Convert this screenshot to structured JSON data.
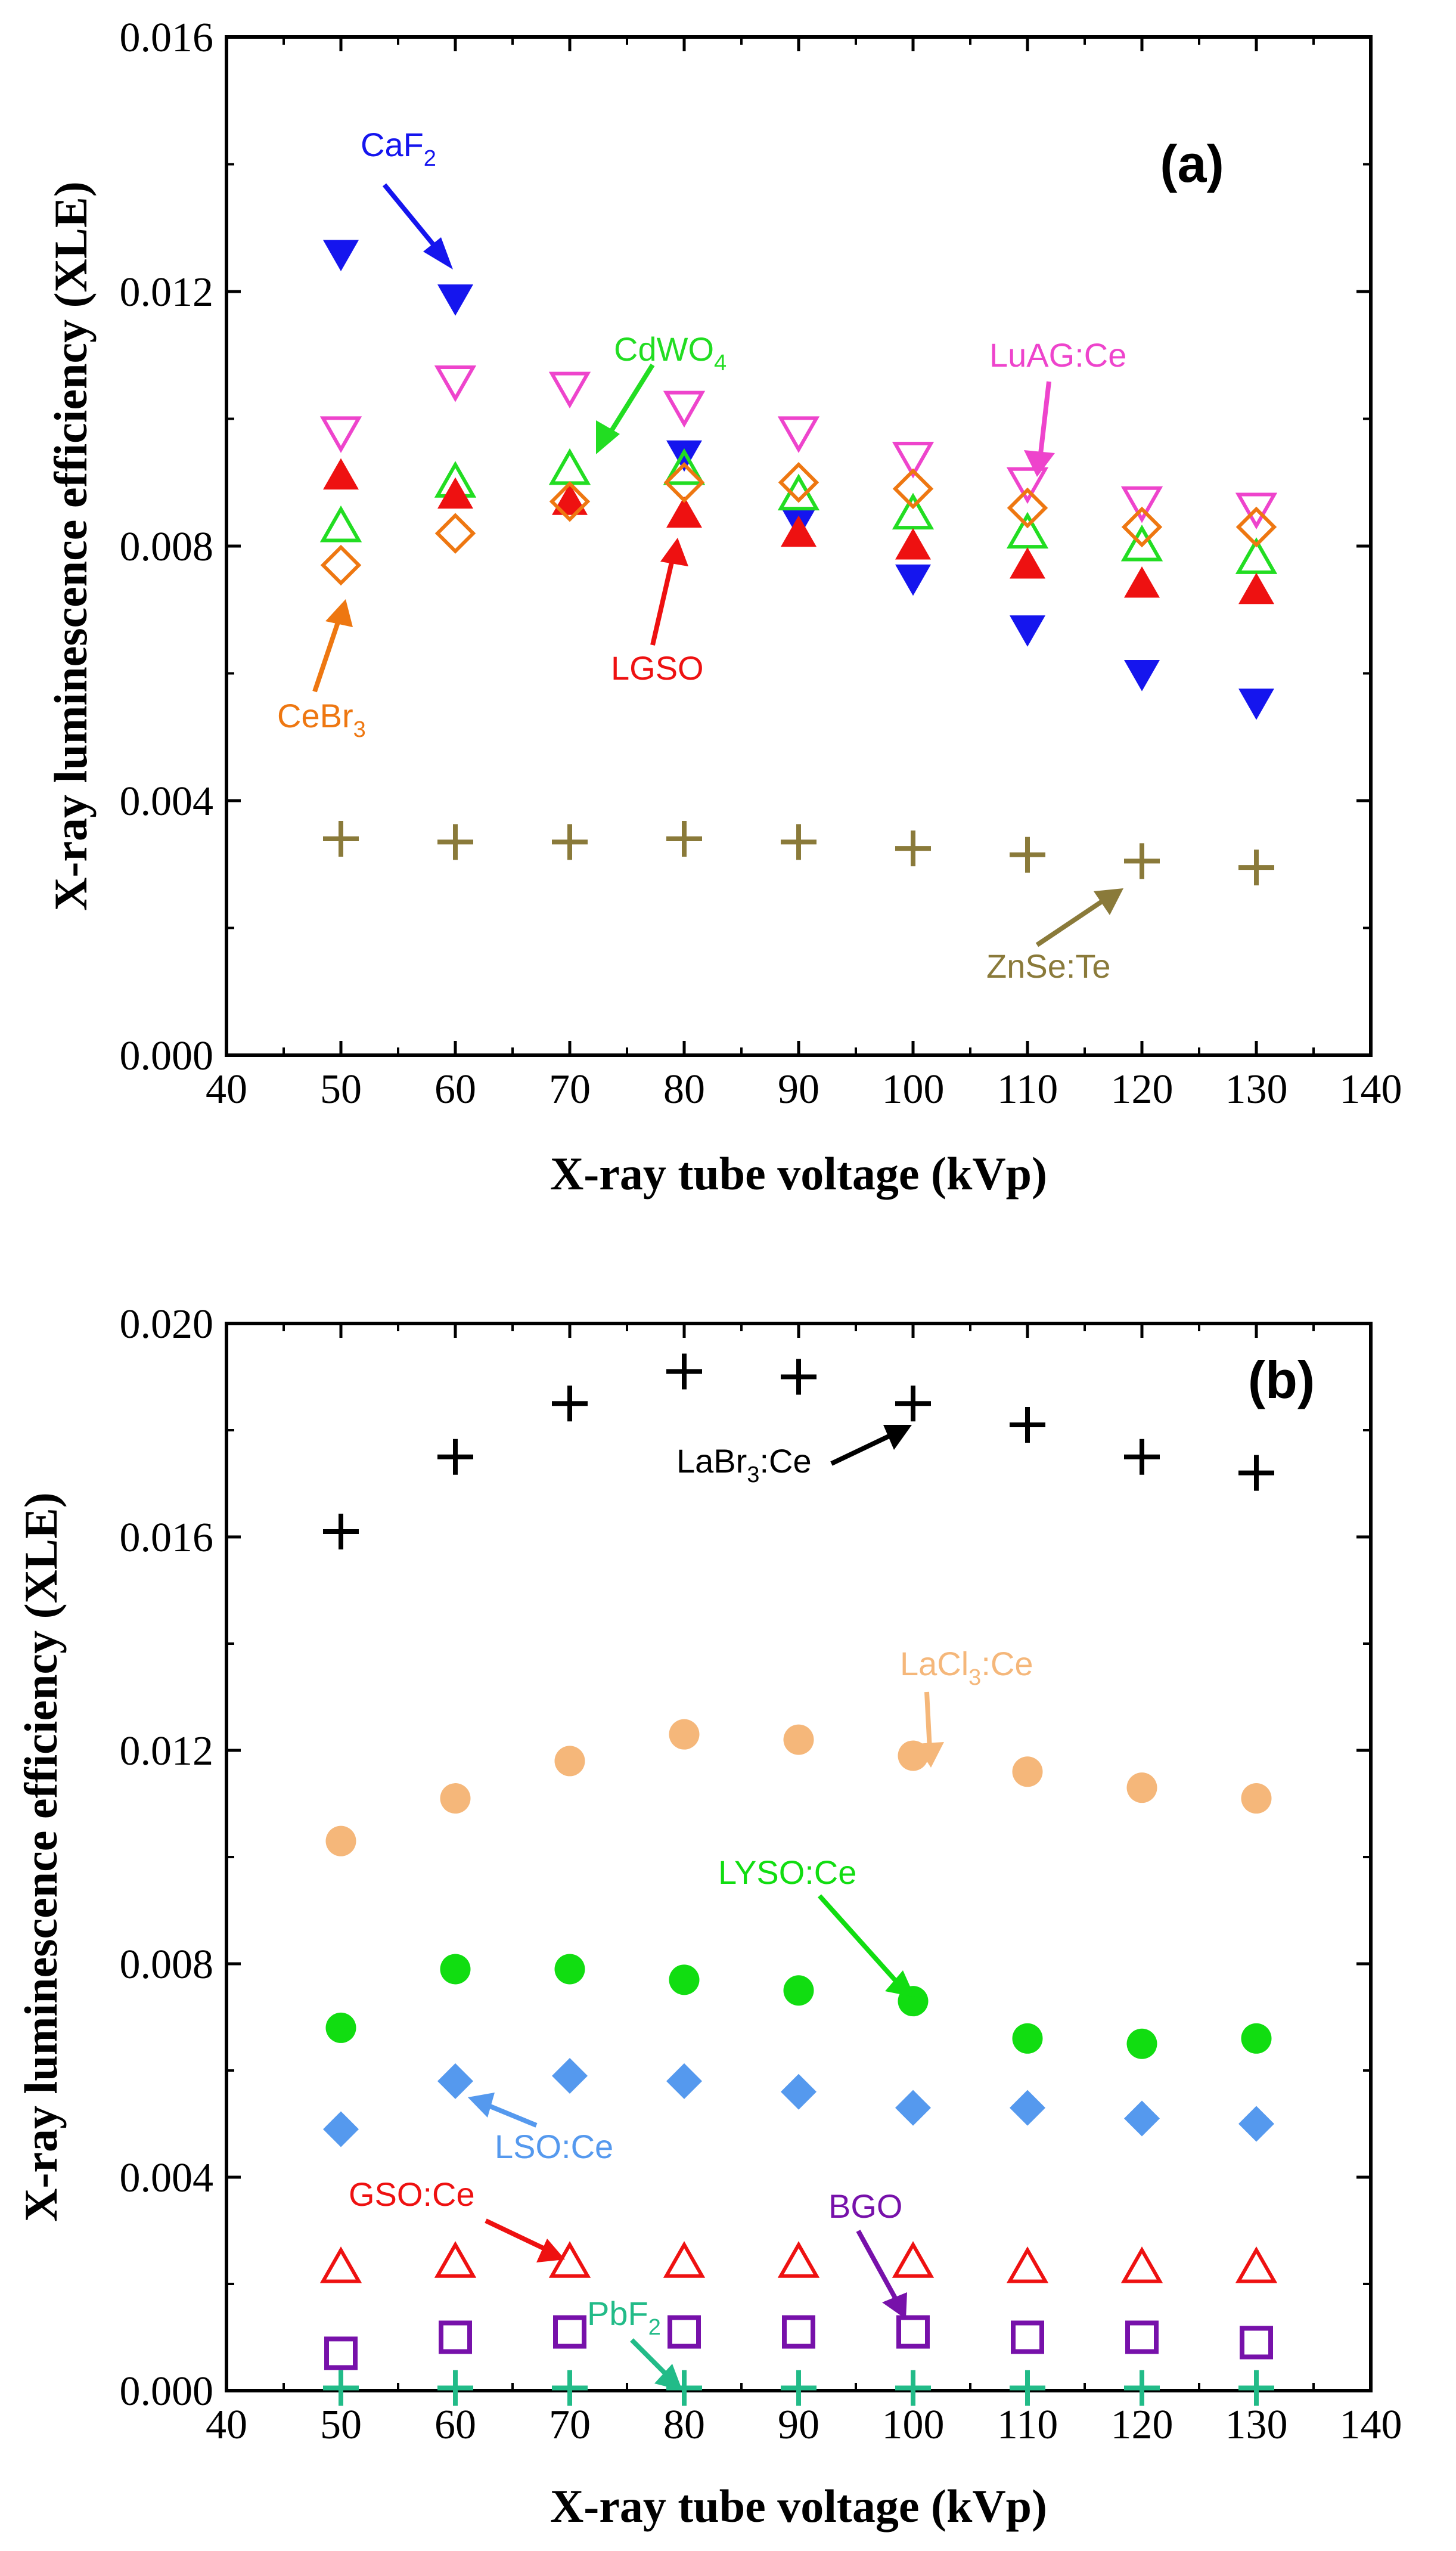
{
  "chart_data": [
    {
      "type": "scatter",
      "panel_label": "(a)",
      "xlabel": "X-ray tube voltage (kVp)",
      "ylabel": "X-ray luminescence efficiency (XLE)",
      "xlim": [
        40,
        140
      ],
      "ylim": [
        0.0,
        0.016
      ],
      "xticks": [
        "40",
        "50",
        "60",
        "70",
        "80",
        "90",
        "100",
        "110",
        "120",
        "130",
        "140"
      ],
      "yticks": [
        "0.000",
        "0.004",
        "0.008",
        "0.012",
        "0.016"
      ],
      "x": [
        50,
        60,
        70,
        80,
        90,
        100,
        110,
        120,
        130
      ],
      "series": [
        {
          "name": "CaF2",
          "label_main": "CaF",
          "label_sub": "2",
          "marker": "tri-down-filled",
          "color": "#1515ee",
          "values": [
            0.0126,
            0.0119,
            null,
            0.00945,
            0.0084,
            0.0075,
            0.0067,
            0.006,
            0.00555
          ]
        },
        {
          "name": "LuAG:Ce",
          "label_main": "LuAG:Ce",
          "marker": "tri-down-open",
          "color": "#ee44cc",
          "values": [
            0.0098,
            0.0106,
            0.0105,
            0.0102,
            0.0098,
            0.0094,
            0.009,
            0.0087,
            0.0086
          ]
        },
        {
          "name": "CdWO4",
          "label_main": "CdWO",
          "label_sub": "4",
          "marker": "tri-up-open",
          "color": "#22dd22",
          "values": [
            0.0083,
            0.009,
            0.0092,
            0.0092,
            0.0088,
            0.0085,
            0.0082,
            0.008,
            0.0078
          ]
        },
        {
          "name": "LGSO",
          "label_main": "LGSO",
          "marker": "tri-up-filled",
          "color": "#ee1111",
          "values": [
            0.0091,
            0.0088,
            0.0087,
            0.0085,
            0.0082,
            0.008,
            0.0077,
            0.0074,
            0.0073
          ]
        },
        {
          "name": "CeBr3",
          "label_main": "CeBr",
          "label_sub": "3",
          "marker": "diamond-open",
          "color": "#ee7711",
          "values": [
            0.0077,
            0.0082,
            0.0087,
            0.009,
            0.009,
            0.0089,
            0.0086,
            0.0083,
            0.0083
          ]
        },
        {
          "name": "ZnSe:Te",
          "label_main": "ZnSe:Te",
          "marker": "plus",
          "color": "#8a7a3a",
          "values": [
            0.0034,
            0.00335,
            0.00335,
            0.0034,
            0.00335,
            0.00325,
            0.00315,
            0.00305,
            0.00295
          ]
        }
      ]
    },
    {
      "type": "scatter",
      "panel_label": "(b)",
      "xlabel": "X-ray tube voltage (kVp)",
      "ylabel": "X-ray luminescence efficiency (XLE)",
      "xlim": [
        40,
        140
      ],
      "ylim": [
        0.0,
        0.02
      ],
      "xticks": [
        "40",
        "50",
        "60",
        "70",
        "80",
        "90",
        "100",
        "110",
        "120",
        "130",
        "140"
      ],
      "yticks": [
        "0.000",
        "0.004",
        "0.008",
        "0.012",
        "0.016",
        "0.020"
      ],
      "x": [
        50,
        60,
        70,
        80,
        90,
        100,
        110,
        120,
        130
      ],
      "series": [
        {
          "name": "LaBr3:Ce",
          "label_main": "LaBr",
          "label_sub": "3",
          "label_tail": ":Ce",
          "marker": "plus",
          "color": "#000000",
          "values": [
            0.0161,
            0.0175,
            0.0185,
            0.0191,
            0.019,
            0.0185,
            0.0181,
            0.0175,
            0.0172
          ]
        },
        {
          "name": "LaCl3:Ce",
          "label_main": "LaCl",
          "label_sub": "3",
          "label_tail": ":Ce",
          "marker": "circle-filled",
          "color": "#f5b77a",
          "values": [
            0.0103,
            0.0111,
            0.0118,
            0.0123,
            0.0122,
            0.0119,
            0.0116,
            0.0113,
            0.0111
          ]
        },
        {
          "name": "LYSO:Ce",
          "label_main": "LYSO:Ce",
          "marker": "circle-filled",
          "color": "#11dd11",
          "values": [
            0.0068,
            0.0079,
            0.0079,
            0.0077,
            0.0075,
            0.0073,
            0.0066,
            0.0065,
            0.0066
          ]
        },
        {
          "name": "LSO:Ce",
          "label_main": "LSO:Ce",
          "marker": "diamond-filled",
          "color": "#5599ee",
          "values": [
            0.0049,
            0.0058,
            0.0059,
            0.0058,
            0.0056,
            0.0053,
            0.0053,
            0.0051,
            0.005
          ]
        },
        {
          "name": "GSO:Ce",
          "label_main": "GSO:Ce",
          "marker": "tri-up-open",
          "color": "#ee1111",
          "values": [
            0.0023,
            0.0024,
            0.0024,
            0.0024,
            0.0024,
            0.0024,
            0.0023,
            0.0023,
            0.0023
          ]
        },
        {
          "name": "BGO",
          "label_main": "BGO",
          "marker": "square-open",
          "color": "#7711aa",
          "values": [
            0.0007,
            0.001,
            0.0011,
            0.0011,
            0.0011,
            0.0011,
            0.001,
            0.001,
            0.0009
          ]
        },
        {
          "name": "PbF2",
          "label_main": "PbF",
          "label_sub": "2",
          "marker": "plus",
          "color": "#22bb88",
          "values": [
            5e-05,
            5e-05,
            5e-05,
            5e-05,
            5e-05,
            5e-05,
            5e-05,
            5e-05,
            5e-05
          ]
        }
      ]
    }
  ]
}
